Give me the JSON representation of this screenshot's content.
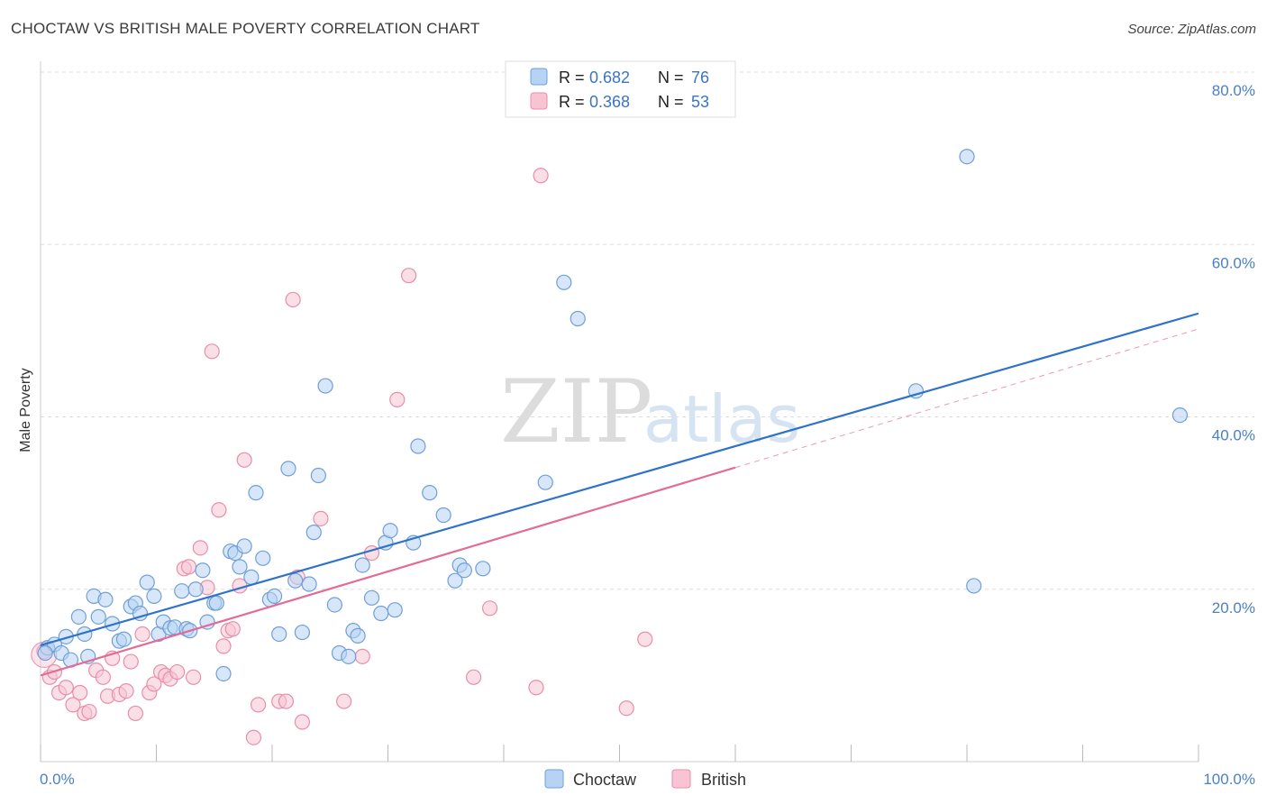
{
  "title": "CHOCTAW VS BRITISH MALE POVERTY CORRELATION CHART",
  "source": "Source: ZipAtlas.com",
  "watermark": {
    "zip": "ZIP",
    "atlas": "atlas"
  },
  "colors": {
    "choctaw_fill": "#b7d3f4",
    "choctaw_stroke": "#6f9fd8",
    "choctaw_line": "#2f72c9",
    "british_fill": "#f8c4d4",
    "british_stroke": "#e88ea9",
    "british_line": "#e46b96",
    "grid": "#dddddd",
    "axis_text": "#4a80c8"
  },
  "legend": {
    "rows": [
      {
        "r_label": "R =",
        "r_value": "0.682",
        "n_label": "N =",
        "n_value": "76"
      },
      {
        "r_label": "R =",
        "r_value": "0.368",
        "n_label": "N =",
        "n_value": "53"
      }
    ]
  },
  "bottom_legend": [
    "Choctaw",
    "British"
  ],
  "chart_data": {
    "type": "scatter",
    "xlabel": "",
    "ylabel": "Male Poverty",
    "xlim": [
      0,
      100
    ],
    "ylim": [
      0,
      80
    ],
    "x_tick_labels": [
      "0.0%",
      "100.0%"
    ],
    "y_ticks": [
      20,
      40,
      60,
      80
    ],
    "y_tick_labels": [
      "20.0%",
      "40.0%",
      "60.0%",
      "80.0%"
    ],
    "grid": true,
    "legend_position": "top-center",
    "series": [
      {
        "name": "Choctaw",
        "trend": {
          "x0": 0,
          "y0": 13.5,
          "x1": 100,
          "y1": 52.0,
          "solid_until": 100
        },
        "points": [
          [
            0.6,
            13.2
          ],
          [
            1.2,
            13.6
          ],
          [
            1.8,
            12.6
          ],
          [
            2.2,
            14.5
          ],
          [
            2.6,
            11.8
          ],
          [
            3.3,
            16.8
          ],
          [
            3.8,
            14.8
          ],
          [
            4.1,
            12.2
          ],
          [
            4.6,
            19.2
          ],
          [
            5.0,
            16.8
          ],
          [
            5.6,
            18.8
          ],
          [
            6.2,
            16.0
          ],
          [
            6.8,
            14.0
          ],
          [
            7.2,
            14.2
          ],
          [
            7.8,
            18.0
          ],
          [
            8.2,
            18.4
          ],
          [
            8.6,
            17.2
          ],
          [
            9.2,
            20.8
          ],
          [
            9.8,
            19.2
          ],
          [
            10.2,
            14.8
          ],
          [
            10.6,
            16.2
          ],
          [
            11.2,
            15.5
          ],
          [
            11.6,
            15.6
          ],
          [
            12.2,
            19.8
          ],
          [
            12.6,
            15.4
          ],
          [
            12.9,
            15.2
          ],
          [
            13.4,
            20.0
          ],
          [
            14.0,
            22.2
          ],
          [
            14.4,
            16.2
          ],
          [
            15.0,
            18.4
          ],
          [
            15.2,
            18.4
          ],
          [
            15.8,
            10.2
          ],
          [
            16.4,
            24.4
          ],
          [
            16.8,
            24.2
          ],
          [
            17.2,
            22.6
          ],
          [
            17.6,
            25.0
          ],
          [
            18.2,
            21.4
          ],
          [
            18.6,
            31.2
          ],
          [
            19.2,
            23.6
          ],
          [
            19.8,
            18.8
          ],
          [
            20.2,
            19.2
          ],
          [
            20.6,
            14.8
          ],
          [
            21.4,
            34.0
          ],
          [
            22.0,
            21.0
          ],
          [
            22.6,
            15.0
          ],
          [
            23.2,
            20.6
          ],
          [
            23.6,
            26.6
          ],
          [
            24.0,
            33.2
          ],
          [
            24.6,
            43.6
          ],
          [
            25.4,
            18.2
          ],
          [
            25.8,
            12.6
          ],
          [
            26.6,
            12.2
          ],
          [
            27.0,
            15.2
          ],
          [
            27.4,
            14.6
          ],
          [
            27.8,
            22.8
          ],
          [
            28.6,
            19.0
          ],
          [
            29.4,
            17.2
          ],
          [
            29.8,
            25.4
          ],
          [
            30.2,
            26.8
          ],
          [
            30.6,
            17.6
          ],
          [
            32.2,
            25.4
          ],
          [
            32.6,
            36.6
          ],
          [
            33.6,
            31.2
          ],
          [
            34.8,
            28.6
          ],
          [
            35.8,
            21.0
          ],
          [
            36.2,
            22.8
          ],
          [
            36.6,
            22.2
          ],
          [
            38.2,
            22.4
          ],
          [
            43.6,
            32.4
          ],
          [
            45.2,
            55.6
          ],
          [
            46.4,
            51.4
          ],
          [
            75.6,
            43.0
          ],
          [
            80.0,
            70.2
          ],
          [
            80.6,
            20.4
          ],
          [
            98.4,
            40.2
          ],
          [
            0.4,
            12.6
          ]
        ]
      },
      {
        "name": "British",
        "trend": {
          "x0": 0,
          "y0": 10.0,
          "x1": 100,
          "y1": 50.2,
          "solid_until": 60
        },
        "points": [
          [
            0.3,
            12.8
          ],
          [
            0.8,
            9.8
          ],
          [
            1.2,
            10.4
          ],
          [
            1.6,
            8.0
          ],
          [
            2.2,
            8.6
          ],
          [
            2.8,
            6.6
          ],
          [
            3.4,
            8.0
          ],
          [
            3.8,
            5.6
          ],
          [
            4.2,
            5.8
          ],
          [
            4.8,
            10.6
          ],
          [
            5.4,
            9.8
          ],
          [
            5.8,
            7.6
          ],
          [
            6.2,
            12.0
          ],
          [
            6.8,
            7.8
          ],
          [
            7.4,
            8.2
          ],
          [
            7.8,
            11.6
          ],
          [
            8.2,
            5.6
          ],
          [
            8.8,
            14.8
          ],
          [
            9.4,
            8.0
          ],
          [
            9.8,
            9.0
          ],
          [
            10.4,
            10.4
          ],
          [
            10.8,
            10.0
          ],
          [
            11.2,
            9.6
          ],
          [
            11.8,
            10.4
          ],
          [
            12.4,
            22.4
          ],
          [
            12.8,
            22.6
          ],
          [
            13.2,
            9.8
          ],
          [
            13.8,
            24.8
          ],
          [
            14.4,
            20.2
          ],
          [
            14.8,
            47.6
          ],
          [
            15.4,
            29.2
          ],
          [
            15.8,
            13.4
          ],
          [
            16.2,
            15.2
          ],
          [
            16.6,
            15.4
          ],
          [
            17.2,
            20.4
          ],
          [
            17.6,
            35.0
          ],
          [
            18.4,
            2.8
          ],
          [
            18.8,
            6.6
          ],
          [
            20.6,
            7.0
          ],
          [
            21.2,
            7.0
          ],
          [
            21.8,
            53.6
          ],
          [
            22.2,
            21.4
          ],
          [
            22.6,
            4.6
          ],
          [
            24.2,
            28.2
          ],
          [
            26.2,
            7.0
          ],
          [
            27.8,
            12.2
          ],
          [
            28.6,
            24.2
          ],
          [
            30.8,
            42.0
          ],
          [
            31.8,
            56.4
          ],
          [
            37.4,
            9.8
          ],
          [
            38.8,
            17.8
          ],
          [
            43.2,
            68.0
          ],
          [
            50.6,
            6.2
          ]
        ]
      }
    ],
    "extra_british_points": [
      [
        42.8,
        8.6
      ],
      [
        52.2,
        14.2
      ]
    ]
  }
}
